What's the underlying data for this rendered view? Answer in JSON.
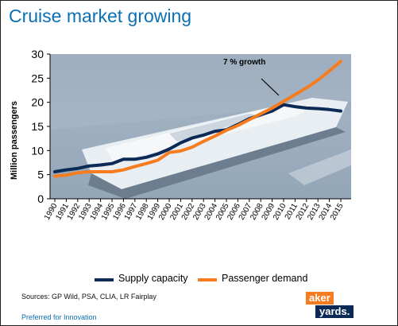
{
  "title": "Cruise market growing",
  "chart_data": {
    "type": "line",
    "title": "",
    "ylabel": "Million passengers",
    "xlabel": "",
    "ylim": [
      0,
      30
    ],
    "y_ticks": [
      0,
      5,
      10,
      15,
      20,
      25,
      30
    ],
    "x": [
      "1990",
      "1991",
      "1992",
      "1993",
      "1994",
      "1995",
      "1996",
      "1997",
      "1998",
      "1999",
      "2000",
      "2001",
      "2002",
      "2003",
      "2004",
      "2005",
      "2006",
      "2007",
      "2008",
      "2009",
      "2010",
      "2011",
      "2012",
      "2013",
      "2014",
      "2015"
    ],
    "series": [
      {
        "name": "Supply capacity",
        "color": "#0b2a56",
        "values": [
          5.6,
          6.0,
          6.3,
          6.8,
          7.0,
          7.3,
          8.2,
          8.2,
          8.6,
          9.3,
          10.3,
          11.6,
          12.6,
          13.2,
          14.0,
          14.3,
          15.4,
          16.6,
          17.4,
          18.2,
          19.5,
          19.1,
          18.8,
          18.7,
          18.5,
          18.2
        ]
      },
      {
        "name": "Passenger demand",
        "color": "#f57c1f",
        "values": [
          4.7,
          4.9,
          5.4,
          5.6,
          5.6,
          5.6,
          6.0,
          6.7,
          7.3,
          8.0,
          9.6,
          9.9,
          10.7,
          11.9,
          13.0,
          14.2,
          15.2,
          16.4,
          17.6,
          18.8,
          20.2,
          21.6,
          23.0,
          24.6,
          26.5,
          28.5
        ]
      }
    ],
    "annotations": [
      {
        "text": "7 % growth"
      }
    ],
    "grid": false,
    "legend_position": "bottom"
  },
  "sources": "Sources: GP Wild, PSA, CLIA, LR Fairplay",
  "tagline": "Preferred for Innovation",
  "logo": {
    "line1": "aker",
    "line2": "yards.",
    "colors": {
      "orange": "#f57c1f",
      "navy": "#0b2a56"
    }
  }
}
